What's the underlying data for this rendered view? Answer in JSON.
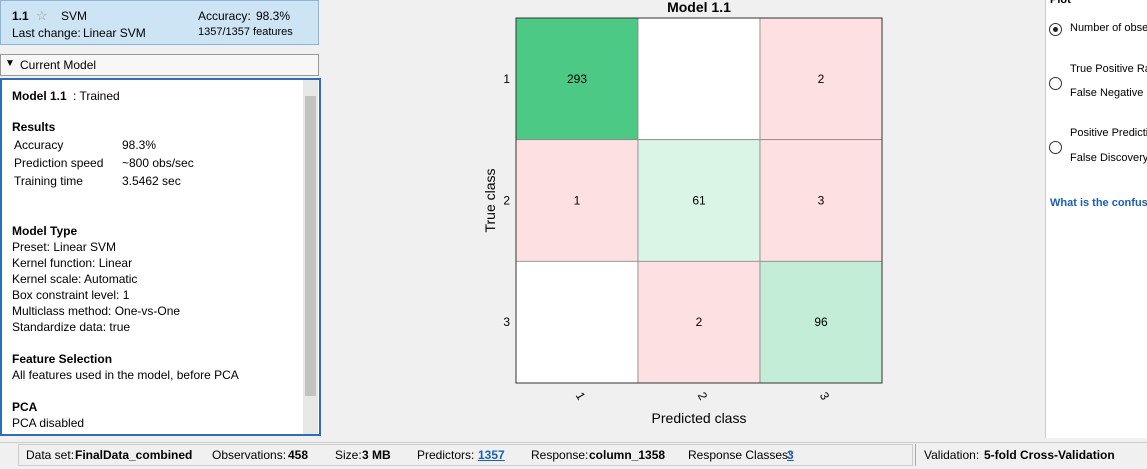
{
  "model_list": {
    "id": "1.1",
    "name": "SVM",
    "accuracy_label": "Accuracy:",
    "accuracy": "98.3%",
    "last_change_label": "Last change:",
    "last_change": "Linear SVM",
    "features": "1357/1357 features"
  },
  "current_model": {
    "header": "Current Model",
    "title": "Model 1.1",
    "status": ": Trained",
    "sections": [
      {
        "heading": "Results",
        "rows": [
          [
            "Accuracy",
            "98.3%"
          ],
          [
            "Prediction speed",
            "~800 obs/sec"
          ],
          [
            "Training time",
            "3.5462 sec"
          ]
        ]
      },
      {
        "heading": "Model Type",
        "lines": [
          "Preset: Linear SVM",
          "Kernel function: Linear",
          "Kernel scale: Automatic",
          "Box constraint level: 1",
          "Multiclass method: One-vs-One",
          "Standardize data: true"
        ]
      },
      {
        "heading": "Feature Selection",
        "lines": [
          "All features used in the model, before PCA"
        ]
      },
      {
        "heading": "PCA",
        "lines": [
          "PCA disabled"
        ]
      }
    ]
  },
  "chart_data": {
    "type": "confusion-matrix",
    "title": "Model 1.1",
    "xlabel": "Predicted class",
    "ylabel": "True class",
    "categories": [
      "1",
      "2",
      "3"
    ],
    "y_categories": [
      "1",
      "2",
      "3"
    ],
    "values": [
      [
        293,
        0,
        2
      ],
      [
        1,
        61,
        3
      ],
      [
        0,
        2,
        96
      ]
    ],
    "diagonal_color": "#4cc985",
    "off_diagonal_color": "#fde0e1"
  },
  "plot_panel": {
    "header": "Plot",
    "options": [
      [
        "Number of obse"
      ],
      [
        "True Positive Ra",
        "False Negative F"
      ],
      [
        "Positive Predicti",
        "False Discovery"
      ]
    ],
    "link": "What is the confus"
  },
  "status_bar": {
    "items": [
      [
        "Data set:",
        "FinalData_combined"
      ],
      [
        "Observations:",
        "458"
      ],
      [
        "Size:",
        "3 MB"
      ],
      [
        "Predictors:",
        "1357"
      ],
      [
        "Response:",
        "column_1358"
      ],
      [
        "Response Classes:",
        "3"
      ]
    ],
    "validation": [
      "Validation:",
      "5-fold Cross-Validation"
    ]
  }
}
